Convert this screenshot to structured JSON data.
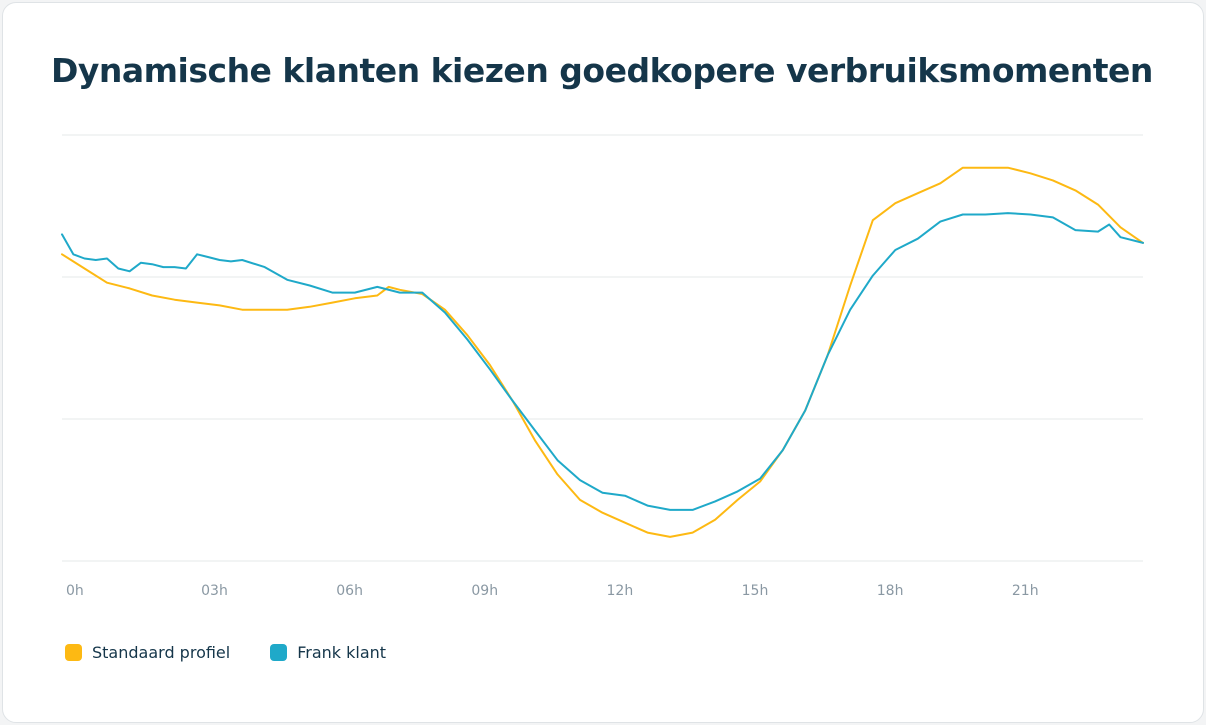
{
  "title": "Dynamische klanten kiezen goedkopere verbruiksmomenten",
  "chart_data": {
    "type": "line",
    "title": "Dynamische klanten kiezen goedkopere verbruiksmomenten",
    "xlabel": "",
    "ylabel": "",
    "xlim": [
      0,
      24
    ],
    "ylim": [
      0,
      3
    ],
    "y_tick_labels_shown": false,
    "grid": "horizontal",
    "gridlines_y": [
      0,
      1,
      2,
      3
    ],
    "x_ticks": [
      0,
      3,
      6,
      9,
      12,
      15,
      18,
      21
    ],
    "x_tick_labels": [
      "0h",
      "03h",
      "06h",
      "09h",
      "12h",
      "15h",
      "18h",
      "21h"
    ],
    "legend_position": "bottom-left",
    "series": [
      {
        "name": "Standaard profiel",
        "color": "#FDB913",
        "x": [
          0,
          0.5,
          1,
          1.5,
          2,
          2.5,
          3,
          3.5,
          4,
          4.5,
          5,
          5.5,
          6,
          6.5,
          7,
          7.25,
          7.5,
          8,
          8.5,
          9,
          9.5,
          10,
          10.5,
          11,
          11.5,
          12,
          12.5,
          13,
          13.5,
          14,
          14.5,
          15,
          15.5,
          16,
          16.5,
          17,
          17.5,
          18,
          18.5,
          19,
          19.5,
          20,
          20.5,
          21,
          21.5,
          22,
          22.5,
          23,
          23.5,
          24
        ],
        "y": [
          2.16,
          2.06,
          1.96,
          1.92,
          1.87,
          1.84,
          1.82,
          1.8,
          1.77,
          1.77,
          1.77,
          1.79,
          1.82,
          1.85,
          1.87,
          1.93,
          1.91,
          1.88,
          1.77,
          1.59,
          1.38,
          1.13,
          0.85,
          0.61,
          0.43,
          0.34,
          0.27,
          0.2,
          0.17,
          0.2,
          0.29,
          0.43,
          0.56,
          0.78,
          1.06,
          1.45,
          1.94,
          2.4,
          2.52,
          2.59,
          2.66,
          2.77,
          2.77,
          2.77,
          2.73,
          2.68,
          2.61,
          2.51,
          2.35,
          2.24
        ]
      },
      {
        "name": "Frank klant",
        "color": "#1FA9C9",
        "x": [
          0,
          0.25,
          0.5,
          0.75,
          1,
          1.25,
          1.5,
          1.75,
          2,
          2.25,
          2.5,
          2.75,
          3,
          3.25,
          3.5,
          3.75,
          4,
          4.5,
          5,
          5.5,
          6,
          6.5,
          7,
          7.5,
          8,
          8.5,
          9,
          9.5,
          10,
          10.5,
          11,
          11.5,
          12,
          12.5,
          13,
          13.5,
          14,
          14.5,
          15,
          15.5,
          16,
          16.5,
          17,
          17.5,
          18,
          18.5,
          19,
          19.5,
          20,
          20.5,
          21,
          21.5,
          22,
          22.5,
          23,
          23.25,
          23.5,
          24
        ],
        "y": [
          2.3,
          2.16,
          2.13,
          2.12,
          2.13,
          2.06,
          2.04,
          2.1,
          2.09,
          2.07,
          2.07,
          2.06,
          2.16,
          2.14,
          2.12,
          2.11,
          2.12,
          2.07,
          1.98,
          1.94,
          1.89,
          1.89,
          1.93,
          1.89,
          1.89,
          1.75,
          1.56,
          1.35,
          1.13,
          0.92,
          0.71,
          0.57,
          0.48,
          0.46,
          0.39,
          0.36,
          0.36,
          0.42,
          0.49,
          0.58,
          0.78,
          1.06,
          1.45,
          1.77,
          2.01,
          2.19,
          2.27,
          2.39,
          2.44,
          2.44,
          2.45,
          2.44,
          2.42,
          2.33,
          2.32,
          2.37,
          2.28,
          2.24
        ]
      }
    ]
  },
  "colors": {
    "title": "#15364a",
    "grid": "#e6e8ea",
    "tick_label": "#8a98a3"
  }
}
